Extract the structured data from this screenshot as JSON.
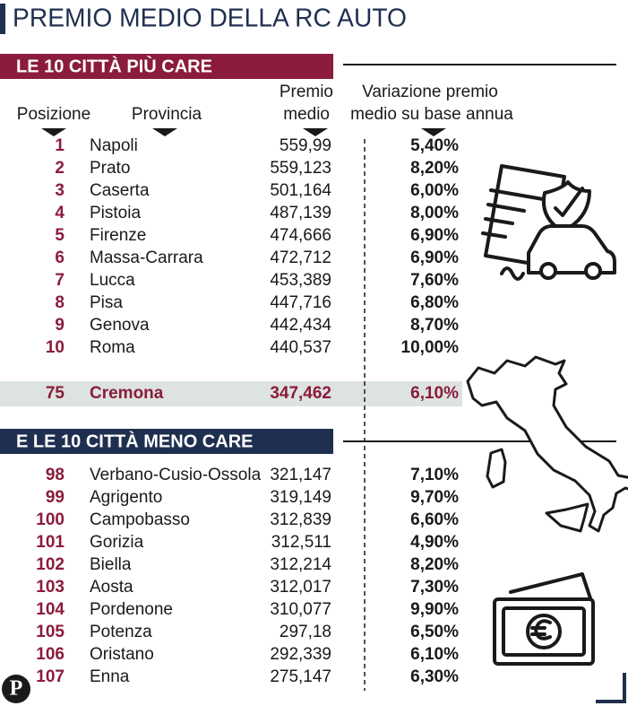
{
  "title": "PREMIO MEDIO DELLA RC AUTO",
  "columns": {
    "position": "Posizione",
    "province": "Provincia",
    "premium": [
      "Premio",
      "medio"
    ],
    "change": [
      "Variazione premio",
      "medio su base annua"
    ]
  },
  "sections": [
    {
      "title": "LE 10 CITTÀ PIÙ CARE",
      "rows": [
        [
          "1",
          "Napoli",
          "559,99",
          "5,40%"
        ],
        [
          "2",
          "Prato",
          "559,123",
          "8,20%"
        ],
        [
          "3",
          "Caserta",
          "501,164",
          "6,00%"
        ],
        [
          "4",
          "Pistoia",
          "487,139",
          "8,00%"
        ],
        [
          "5",
          "Firenze",
          "474,666",
          "6,90%"
        ],
        [
          "6",
          "Massa-Carrara",
          "472,712",
          "6,90%"
        ],
        [
          "7",
          "Lucca",
          "453,389",
          "7,60%"
        ],
        [
          "8",
          "Pisa",
          "447,716",
          "6,80%"
        ],
        [
          "9",
          "Genova",
          "442,434",
          "8,70%"
        ],
        [
          "10",
          "Roma",
          "440,537",
          "10,00%"
        ]
      ]
    },
    {
      "title": "E LE 10 CITTÀ MENO CARE",
      "rows": [
        [
          "98",
          "Verbano-Cusio-Ossola",
          "321,147",
          "7,10%"
        ],
        [
          "99",
          "Agrigento",
          "319,149",
          "9,70%"
        ],
        [
          "100",
          "Campobasso",
          "312,839",
          "6,60%"
        ],
        [
          "101",
          "Gorizia",
          "312,511",
          "4,90%"
        ],
        [
          "102",
          "Biella",
          "312,214",
          "8,20%"
        ],
        [
          "103",
          "Aosta",
          "312,017",
          "7,30%"
        ],
        [
          "104",
          "Pordenone",
          "310,077",
          "9,90%"
        ],
        [
          "105",
          "Potenza",
          "297,18",
          "6,50%"
        ],
        [
          "106",
          "Oristano",
          "292,339",
          "6,10%"
        ],
        [
          "107",
          "Enna",
          "275,147",
          "6,30%"
        ]
      ]
    }
  ],
  "highlight": [
    "75",
    "Cremona",
    "347,462",
    "6,10%"
  ],
  "logo": "P"
}
